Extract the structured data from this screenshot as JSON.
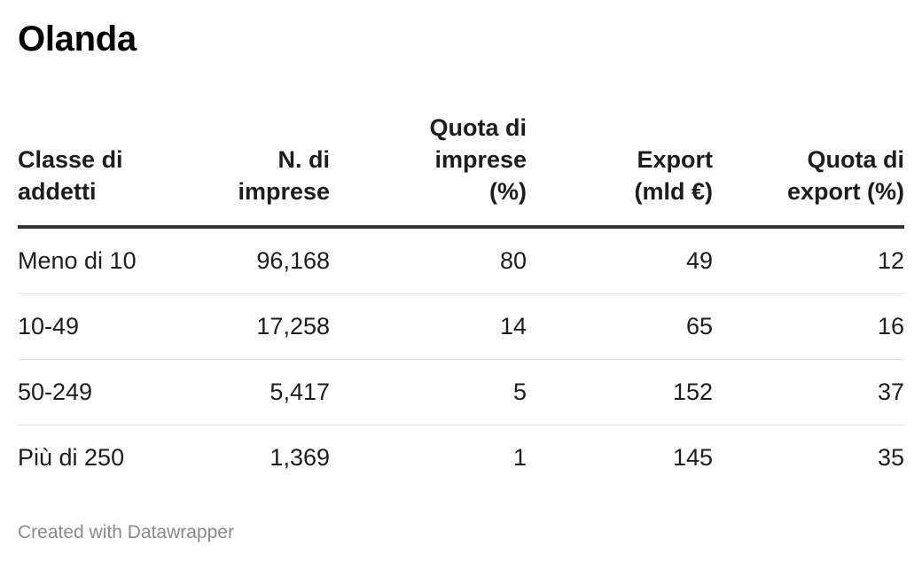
{
  "title": "Olanda",
  "footer": "Created with Datawrapper",
  "chart_data": {
    "type": "table",
    "title": "Olanda",
    "columns": [
      "Classe di addetti",
      "N. di imprese",
      "Quota di imprese (%)",
      "Export (mld €)",
      "Quota di export (%)"
    ],
    "header_lines": [
      [
        "Classe di",
        "addetti"
      ],
      [
        "N. di",
        "imprese"
      ],
      [
        "Quota di",
        "imprese",
        "(%)"
      ],
      [
        "Export",
        "(mld €)"
      ],
      [
        "Quota di",
        "export (%)"
      ]
    ],
    "rows": [
      [
        "Meno di 10",
        "96,168",
        "80",
        "49",
        "12"
      ],
      [
        "10-49",
        "17,258",
        "14",
        "65",
        "16"
      ],
      [
        "50-249",
        "5,417",
        "5",
        "152",
        "37"
      ],
      [
        "Più di 250",
        "1,369",
        "1",
        "145",
        "35"
      ]
    ]
  }
}
